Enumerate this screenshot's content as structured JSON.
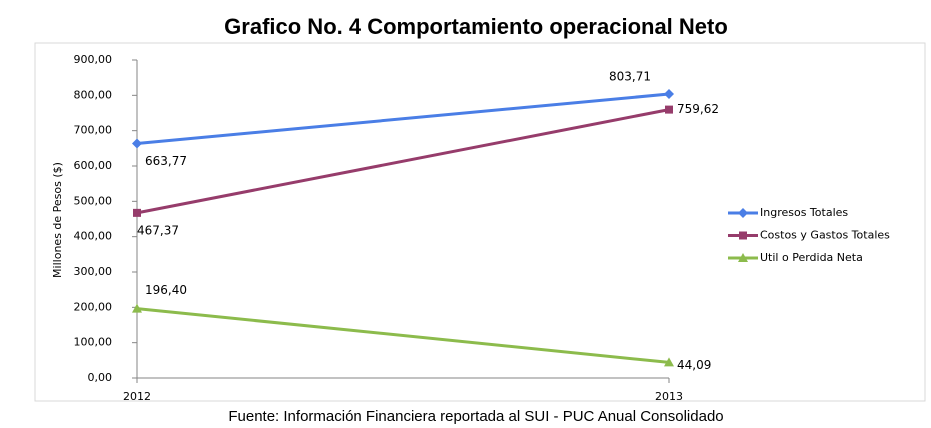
{
  "chart_data": {
    "type": "line",
    "title": "Grafico No. 4 Comportamiento operacional Neto",
    "caption": "Fuente: Información Financiera reportada al SUI - PUC Anual Consolidado",
    "y_label": "Millones de Pesos ($)",
    "categories": [
      "2012",
      "2013"
    ],
    "series": [
      {
        "name": "Ingresos Totales",
        "color": "#4a7ee6",
        "marker": "diamond",
        "values": [
          663.77,
          803.71
        ],
        "value_labels": [
          "663,77",
          "803,71"
        ]
      },
      {
        "name": "Costos y Gastos Totales",
        "color": "#963c6b",
        "marker": "square",
        "values": [
          467.37,
          759.62
        ],
        "value_labels": [
          "467,37",
          "759,62"
        ]
      },
      {
        "name": "Util o Perdida Neta",
        "color": "#8cbb4c",
        "marker": "triangle",
        "values": [
          196.4,
          44.09
        ],
        "value_labels": [
          "196,40",
          "44,09"
        ]
      }
    ],
    "ylim": [
      0,
      900
    ],
    "yticks": [
      {
        "value": 0,
        "label": "0,00"
      },
      {
        "value": 100,
        "label": "100,00"
      },
      {
        "value": 200,
        "label": "200,00"
      },
      {
        "value": 300,
        "label": "300,00"
      },
      {
        "value": 400,
        "label": "400,00"
      },
      {
        "value": 500,
        "label": "500,00"
      },
      {
        "value": 600,
        "label": "600,00"
      },
      {
        "value": 700,
        "label": "700,00"
      },
      {
        "value": 800,
        "label": "800,00"
      },
      {
        "value": 900,
        "label": "900,00"
      }
    ],
    "legend": "right"
  }
}
